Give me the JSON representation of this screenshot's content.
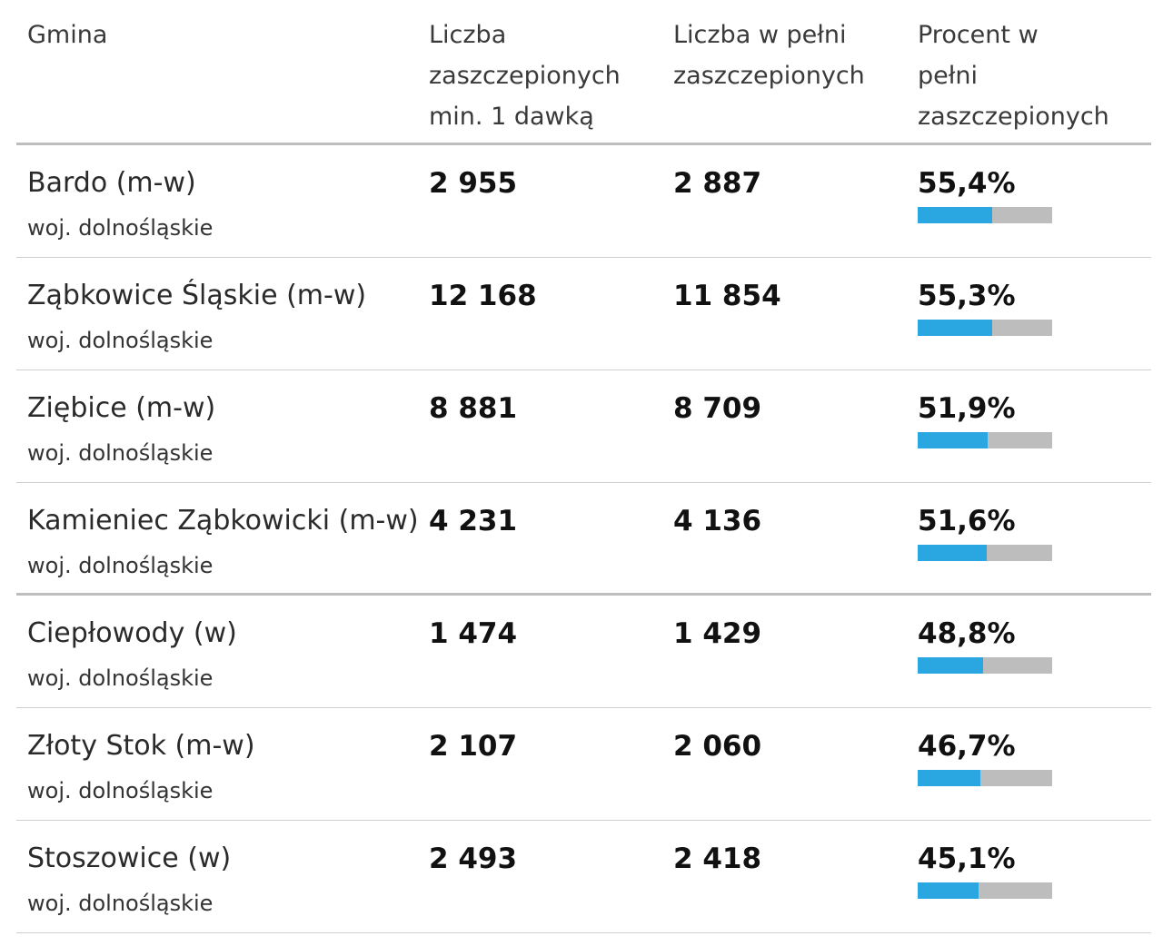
{
  "header": {
    "gmina": "Gmina",
    "dose1": [
      "Liczba",
      "zaszczepionych",
      "min. 1 dawką"
    ],
    "full": [
      "Liczba w pełni",
      "zaszczepionych"
    ],
    "pct": [
      "Procent w",
      "pełni",
      "zaszczepionych"
    ]
  },
  "colors": {
    "bar_fill": "#2aa6e0",
    "bar_track": "#bdbdbd"
  },
  "rows": [
    {
      "name": "Bardo (m-w)",
      "region": "woj. dolnośląskie",
      "dose1": "2 955",
      "full": "2 887",
      "pct_label": "55,4%",
      "pct": 55.4
    },
    {
      "name": "Ząbkowice Śląskie (m-w)",
      "region": "woj. dolnośląskie",
      "dose1": "12 168",
      "full": "11 854",
      "pct_label": "55,3%",
      "pct": 55.3
    },
    {
      "name": "Ziębice (m-w)",
      "region": "woj. dolnośląskie",
      "dose1": "8 881",
      "full": "8 709",
      "pct_label": "51,9%",
      "pct": 51.9
    },
    {
      "name": "Kamieniec Ząbkowicki (m-w)",
      "region": "woj. dolnośląskie",
      "dose1": "4 231",
      "full": "4 136",
      "pct_label": "51,6%",
      "pct": 51.6
    },
    {
      "name": "Ciepłowody (w)",
      "region": "woj. dolnośląskie",
      "dose1": "1 474",
      "full": "1 429",
      "pct_label": "48,8%",
      "pct": 48.8
    },
    {
      "name": "Złoty Stok (m-w)",
      "region": "woj. dolnośląskie",
      "dose1": "2 107",
      "full": "2 060",
      "pct_label": "46,7%",
      "pct": 46.7
    },
    {
      "name": "Stoszowice (w)",
      "region": "woj. dolnośląskie",
      "dose1": "2 493",
      "full": "2 418",
      "pct_label": "45,1%",
      "pct": 45.1
    }
  ]
}
